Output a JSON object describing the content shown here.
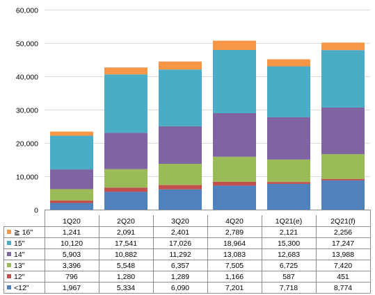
{
  "chart_data": {
    "type": "bar",
    "stacked": true,
    "categories": [
      "1Q20",
      "2Q20",
      "3Q20",
      "4Q20",
      "1Q21(e)",
      "2Q21(f)"
    ],
    "ylim": [
      0,
      60000
    ],
    "yticks": [
      0,
      10000,
      20000,
      30000,
      40000,
      50000,
      60000
    ],
    "ytick_labels": [
      "0",
      "10,000",
      "20,000",
      "30,000",
      "40,000",
      "50,000",
      "60,000"
    ],
    "grid": true,
    "legend": "data-table-left",
    "series": [
      {
        "name": "<12\"",
        "color": "#4F81BD",
        "values": [
          1967,
          5334,
          6090,
          7201,
          7718,
          8774
        ],
        "labels": [
          "1,967",
          "5,334",
          "6,090",
          "7,201",
          "7,718",
          "8,774"
        ]
      },
      {
        "name": "12\"",
        "color": "#C0504D",
        "values": [
          796,
          1280,
          1289,
          1166,
          587,
          451
        ],
        "labels": [
          "796",
          "1,280",
          "1,289",
          "1,166",
          "587",
          "451"
        ]
      },
      {
        "name": "13\"",
        "color": "#9BBB59",
        "values": [
          3396,
          5548,
          6357,
          7505,
          6725,
          7420
        ],
        "labels": [
          "3,396",
          "5,548",
          "6,357",
          "7,505",
          "6,725",
          "7,420"
        ]
      },
      {
        "name": "14\"",
        "color": "#8064A2",
        "values": [
          5903,
          10882,
          11292,
          13083,
          12683,
          13988
        ],
        "labels": [
          "5,903",
          "10,882",
          "11,292",
          "13,083",
          "12,683",
          "13,988"
        ]
      },
      {
        "name": "15\"",
        "color": "#4BACC6",
        "values": [
          10120,
          17541,
          17026,
          18964,
          15300,
          17247
        ],
        "labels": [
          "10,120",
          "17,541",
          "17,026",
          "18,964",
          "15,300",
          "17,247"
        ]
      },
      {
        "name": "≧ 16\"",
        "color": "#F79646",
        "values": [
          1241,
          2091,
          2401,
          2789,
          2121,
          2256
        ],
        "labels": [
          "1,241",
          "2,091",
          "2,401",
          "2,789",
          "2,121",
          "2,256"
        ]
      }
    ]
  }
}
